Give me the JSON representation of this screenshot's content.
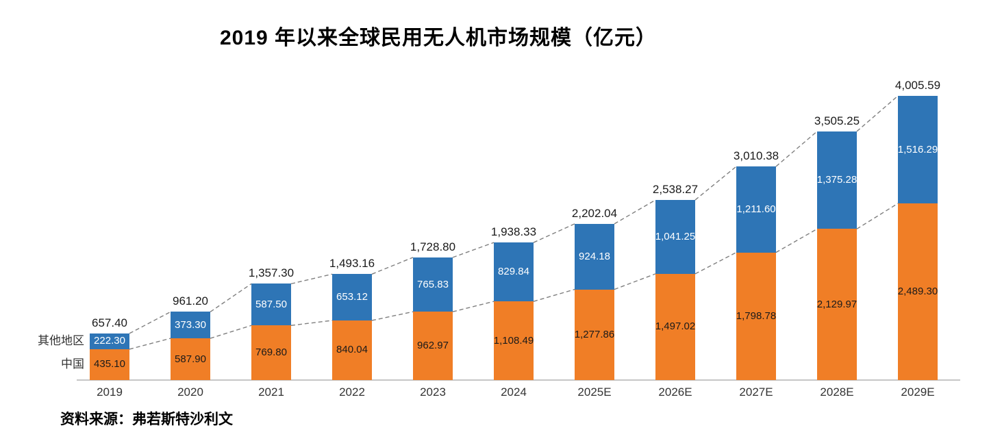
{
  "title": "2019 年以来全球民用无人机市场规模（亿元）",
  "source": "资料来源：弗若斯特沙利文",
  "chart_data": {
    "type": "bar",
    "stacked": true,
    "title": "2019 年以来全球民用无人机市场规模（亿元）",
    "xlabel": "",
    "ylabel": "市场规模（亿元）",
    "ylim": [
      0,
      4100
    ],
    "grid": false,
    "legend_position": "left-of-first-bar",
    "categories": [
      "2019",
      "2020",
      "2021",
      "2022",
      "2023",
      "2024",
      "2025E",
      "2026E",
      "2027E",
      "2028E",
      "2029E"
    ],
    "series": [
      {
        "name": "中国",
        "color": "#F07E26",
        "label_color": "#1a1a1a",
        "values": [
          435.1,
          587.9,
          769.8,
          840.04,
          962.97,
          1108.49,
          1277.86,
          1497.02,
          1798.78,
          2129.97,
          2489.3
        ]
      },
      {
        "name": "其他地区",
        "color": "#2E75B6",
        "label_color": "#ffffff",
        "values": [
          222.3,
          373.3,
          587.5,
          653.12,
          765.83,
          829.84,
          924.18,
          1041.25,
          1211.6,
          1375.28,
          1516.29
        ]
      }
    ],
    "totals": [
      657.4,
      961.2,
      1357.3,
      1493.16,
      1728.8,
      1938.33,
      2202.04,
      2538.27,
      3010.38,
      3505.25,
      4005.59
    ],
    "annotations": "dashed trend connectors along stacked totals and along tops of China segments",
    "colors": {
      "dashed_line": "#7f7f7f",
      "axis_line": "#b3b3b3"
    }
  }
}
